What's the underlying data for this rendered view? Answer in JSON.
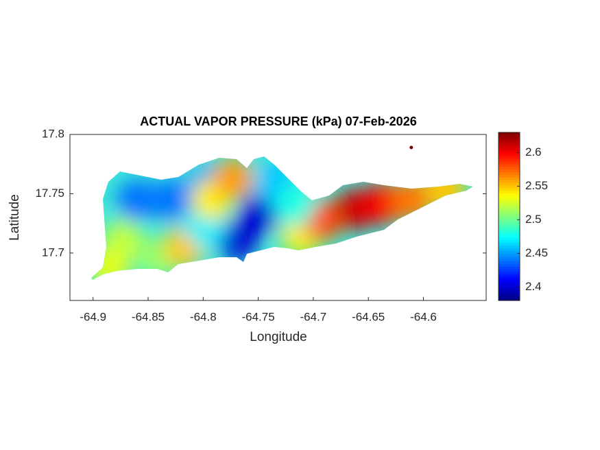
{
  "chart_data": {
    "type": "map-contour",
    "title": "ACTUAL VAPOR PRESSURE (kPa) 07-Feb-2026",
    "x_label": "Longitude",
    "y_label": "Latitude",
    "xlim": [
      -64.921,
      -64.543
    ],
    "ylim": [
      17.66,
      17.8
    ],
    "xticks": [
      -64.9,
      -64.85,
      -64.8,
      -64.75,
      -64.7,
      -64.65,
      -64.6
    ],
    "yticks": [
      17.7,
      17.75,
      17.8
    ],
    "colormap": "jet",
    "clim": [
      2.38,
      2.63
    ],
    "cticks": [
      2.4,
      2.45,
      2.5,
      2.55,
      2.6
    ],
    "points": {
      "lon": [
        -64.748,
        -64.77,
        -64.86,
        -64.829,
        -64.798,
        -64.736,
        -64.873,
        -64.885,
        -64.841,
        -64.817,
        -64.798,
        -64.792,
        -64.773,
        -64.711,
        -64.692,
        -64.661,
        -64.636,
        -64.611,
        -64.58,
        -64.717,
        -64.611
      ],
      "lat": [
        17.734,
        17.711,
        17.745,
        17.745,
        17.757,
        17.76,
        17.711,
        17.688,
        17.696,
        17.705,
        17.722,
        17.745,
        17.763,
        17.716,
        17.728,
        17.737,
        17.742,
        17.745,
        17.754,
        17.74,
        17.789
      ],
      "values": [
        2.4,
        2.4,
        2.44,
        2.44,
        2.45,
        2.46,
        2.52,
        2.53,
        2.51,
        2.55,
        2.47,
        2.54,
        2.56,
        2.54,
        2.58,
        2.61,
        2.6,
        2.57,
        2.55,
        2.48,
        2.63
      ]
    }
  }
}
